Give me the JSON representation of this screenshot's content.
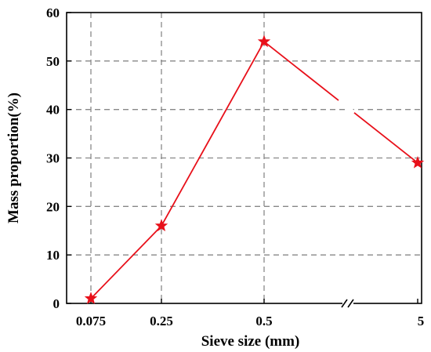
{
  "chart_data": {
    "type": "line",
    "title": "",
    "xlabel": "Sieve size (mm)",
    "ylabel": "Mass proportion(%)",
    "categories": [
      "0.075",
      "0.25",
      "0.5",
      "5"
    ],
    "series": [
      {
        "values": [
          1,
          16,
          54,
          29
        ],
        "color": "#e8101a",
        "marker": "star"
      }
    ],
    "ylim": [
      0,
      60
    ],
    "yticks": [
      0,
      10,
      20,
      30,
      40,
      50,
      60
    ],
    "grid": true,
    "axis_break": "between 0.5 and 5"
  }
}
